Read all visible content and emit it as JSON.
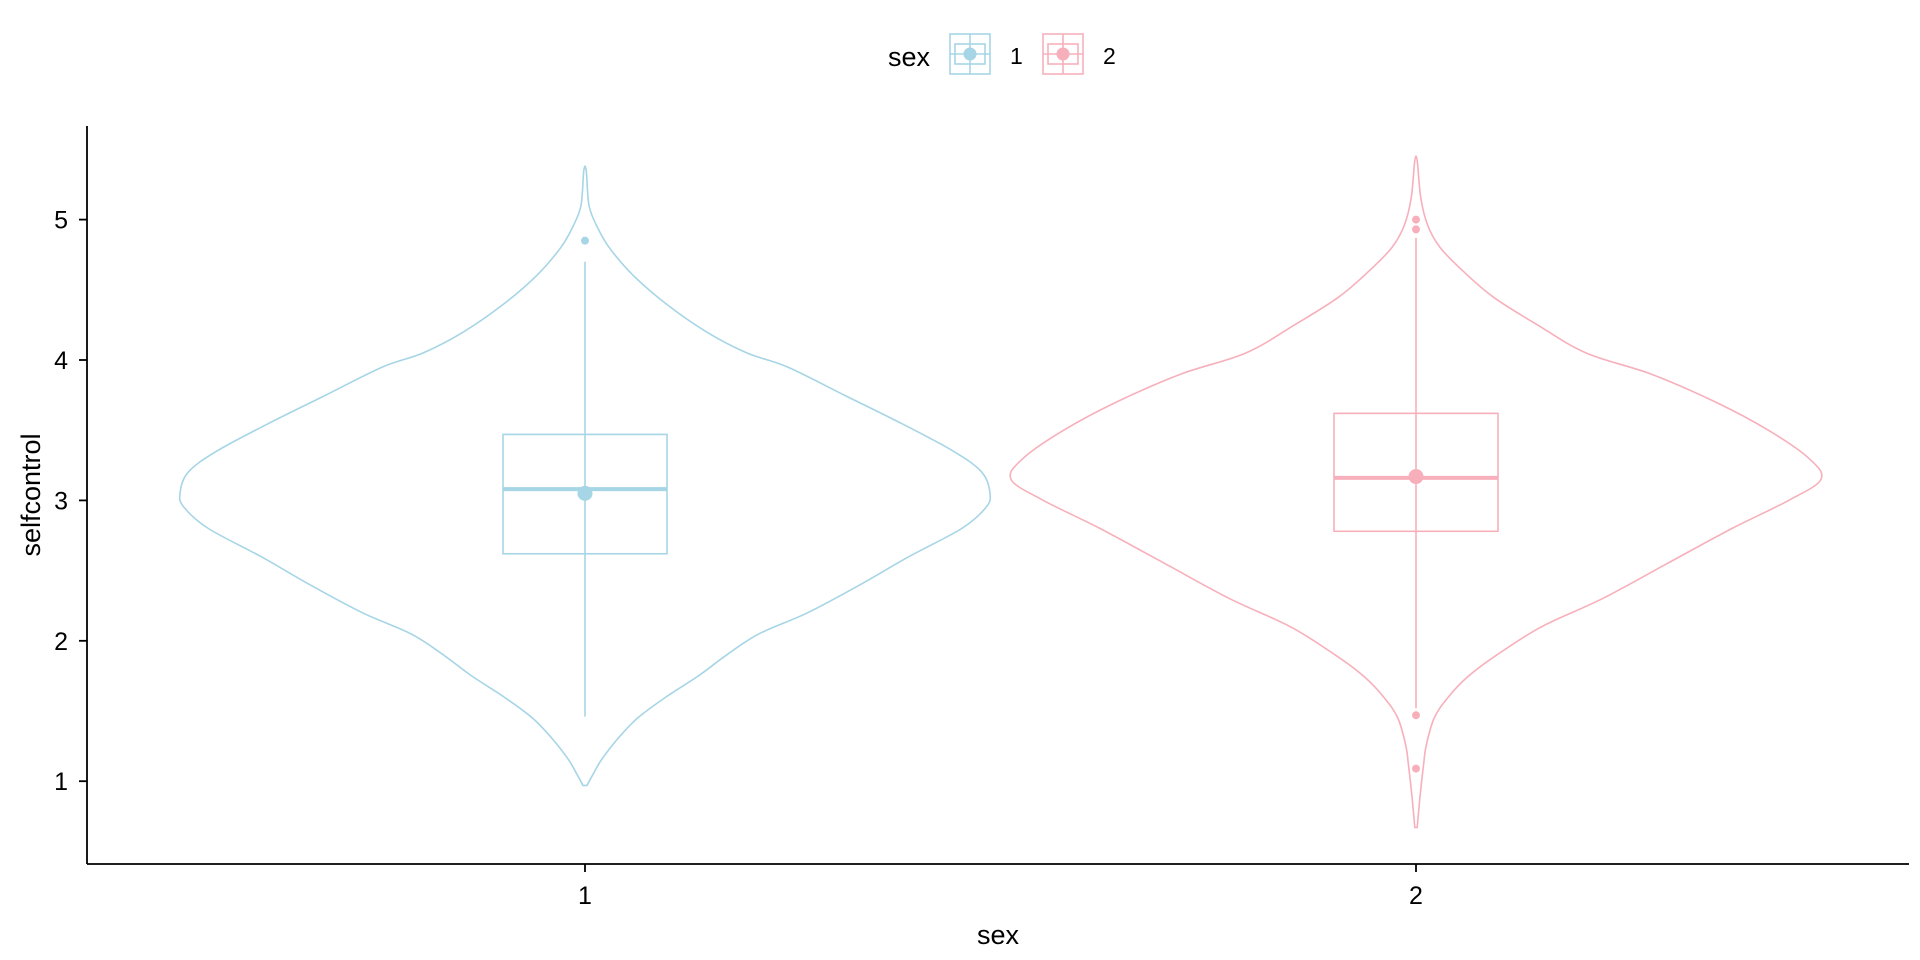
{
  "chart_data": {
    "type": "violin",
    "xlabel": "sex",
    "ylabel": "selfcontrol",
    "categories": [
      "1",
      "2"
    ],
    "yticks": [
      "1",
      "2",
      "3",
      "4",
      "5"
    ],
    "ylim": [
      0.45,
      5.65
    ],
    "grid": false,
    "legend": {
      "title": "sex",
      "placement": "top",
      "entries": [
        "1",
        "2"
      ]
    },
    "colors": [
      "#a6d5e6",
      "#f7b0bb"
    ],
    "series": [
      {
        "category": "1",
        "violin_range": [
          0.97,
          5.35
        ],
        "density_profile": [
          [
            0.97,
            0.005
          ],
          [
            1.05,
            0.02
          ],
          [
            1.15,
            0.04
          ],
          [
            1.3,
            0.08
          ],
          [
            1.45,
            0.13
          ],
          [
            1.6,
            0.2
          ],
          [
            1.75,
            0.28
          ],
          [
            1.9,
            0.35
          ],
          [
            2.05,
            0.43
          ],
          [
            2.2,
            0.55
          ],
          [
            2.4,
            0.68
          ],
          [
            2.6,
            0.8
          ],
          [
            2.8,
            0.93
          ],
          [
            2.95,
            0.99
          ],
          [
            3.05,
            1.0
          ],
          [
            3.2,
            0.98
          ],
          [
            3.35,
            0.91
          ],
          [
            3.55,
            0.78
          ],
          [
            3.75,
            0.64
          ],
          [
            3.95,
            0.5
          ],
          [
            4.05,
            0.4
          ],
          [
            4.2,
            0.3
          ],
          [
            4.4,
            0.2
          ],
          [
            4.6,
            0.12
          ],
          [
            4.8,
            0.06
          ],
          [
            4.95,
            0.03
          ],
          [
            5.1,
            0.01
          ],
          [
            5.35,
            0.003
          ]
        ],
        "box": {
          "q1": 2.62,
          "median": 3.08,
          "q3": 3.47,
          "whisker_low": 1.46,
          "whisker_high": 4.7
        },
        "outliers": [
          4.85
        ],
        "mean": 3.05
      },
      {
        "category": "2",
        "violin_range": [
          0.67,
          5.42
        ],
        "density_profile": [
          [
            0.67,
            0.003
          ],
          [
            0.8,
            0.007
          ],
          [
            0.95,
            0.012
          ],
          [
            1.1,
            0.018
          ],
          [
            1.25,
            0.025
          ],
          [
            1.45,
            0.045
          ],
          [
            1.6,
            0.08
          ],
          [
            1.75,
            0.13
          ],
          [
            1.9,
            0.2
          ],
          [
            2.1,
            0.31
          ],
          [
            2.3,
            0.46
          ],
          [
            2.55,
            0.62
          ],
          [
            2.8,
            0.78
          ],
          [
            3.0,
            0.92
          ],
          [
            3.15,
            1.0
          ],
          [
            3.3,
            0.97
          ],
          [
            3.5,
            0.87
          ],
          [
            3.7,
            0.74
          ],
          [
            3.9,
            0.58
          ],
          [
            4.05,
            0.42
          ],
          [
            4.25,
            0.3
          ],
          [
            4.45,
            0.19
          ],
          [
            4.65,
            0.11
          ],
          [
            4.8,
            0.06
          ],
          [
            4.95,
            0.03
          ],
          [
            5.15,
            0.012
          ],
          [
            5.42,
            0.003
          ]
        ],
        "box": {
          "q1": 2.78,
          "median": 3.16,
          "q3": 3.62,
          "whisker_low": 1.52,
          "whisker_high": 4.87
        },
        "outliers": [
          1.09,
          1.47,
          4.93,
          5.0
        ],
        "mean": 3.17
      }
    ]
  }
}
